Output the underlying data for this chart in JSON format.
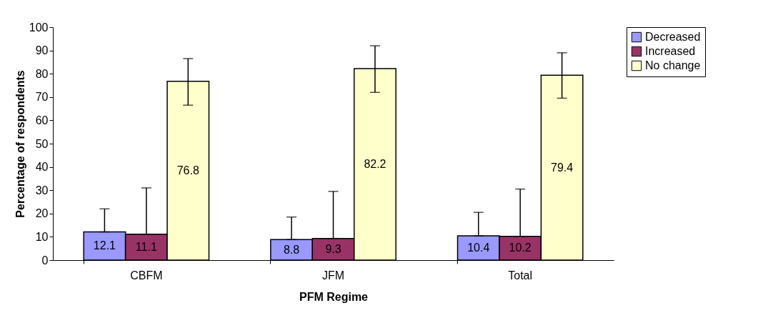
{
  "chart_data": {
    "type": "bar",
    "xlabel": "PFM Regime",
    "ylabel": "Percentage of respondents",
    "categories": [
      "CBFM",
      "JFM",
      "Total"
    ],
    "series": [
      {
        "name": "Decreased",
        "color": "#9999ff",
        "values": [
          12.1,
          8.8,
          10.4
        ],
        "errors": [
          [
            12.1,
            22
          ],
          [
            8.8,
            18.5
          ],
          [
            10.4,
            20.5
          ]
        ]
      },
      {
        "name": "Increased",
        "color": "#993366",
        "values": [
          11.1,
          9.3,
          10.2
        ],
        "errors": [
          [
            11.1,
            31
          ],
          [
            9.3,
            29.5
          ],
          [
            10.2,
            30.5
          ]
        ]
      },
      {
        "name": "No change",
        "color": "#ffffcc",
        "values": [
          76.8,
          82.2,
          79.4
        ],
        "errors": [
          [
            66.5,
            86.5
          ],
          [
            72,
            92
          ],
          [
            69.5,
            89
          ]
        ]
      }
    ],
    "ylim": [
      0,
      100
    ],
    "yticks": [
      0,
      10,
      20,
      30,
      40,
      50,
      60,
      70,
      80,
      90,
      100
    ],
    "data_labels": true,
    "legend": "right",
    "grid": false
  }
}
